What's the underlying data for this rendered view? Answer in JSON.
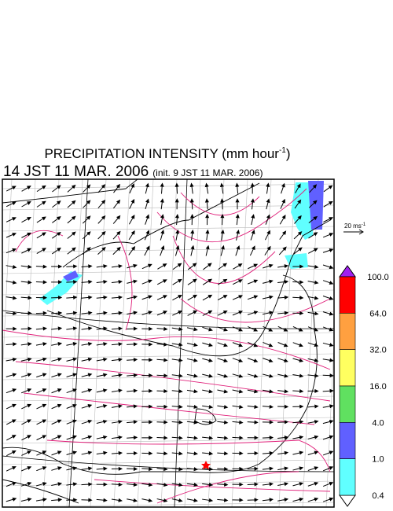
{
  "title": {
    "main": "PRECIPITATION INTENSITY (mm hour",
    "superscript": "-1",
    "close": ")"
  },
  "subtitle": {
    "valid": "14 JST 11 MAR. 2006",
    "init": "(init. 9 JST 11 MAR. 2006)"
  },
  "wind_scale": {
    "label": "20 ms",
    "superscript": "-1"
  },
  "colorbar": {
    "over_color": "#a020f0",
    "under_color": "#ffffff",
    "labels": [
      "100.0",
      "64.0",
      "32.0",
      "16.0",
      "4.0",
      "1.0",
      "0.4"
    ],
    "colors": [
      "#ff0000",
      "#ffa040",
      "#ffff60",
      "#60e060",
      "#6060ff",
      "#60ffff"
    ]
  }
}
